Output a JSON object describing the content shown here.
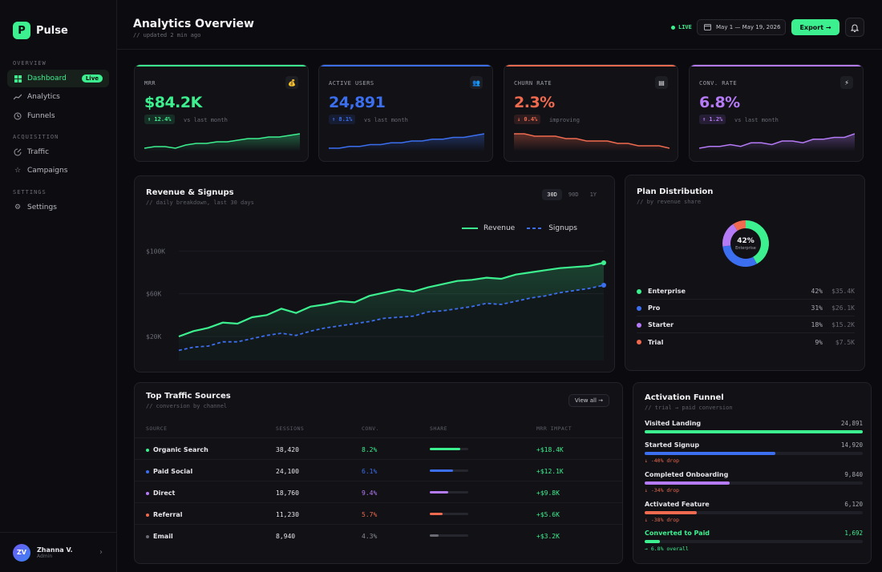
{
  "app": {
    "name": "Pulse",
    "logo_letter": "P"
  },
  "sidebar": {
    "sections": [
      {
        "label": "OVERVIEW"
      },
      {
        "label": "ACQUISITION"
      },
      {
        "label": "SETTINGS"
      }
    ],
    "items": [
      {
        "label": "Dashboard",
        "icon": "grid-icon",
        "badge": "Live",
        "active": true
      },
      {
        "label": "Analytics",
        "icon": "trend-icon"
      },
      {
        "label": "Funnels",
        "icon": "clock-icon"
      },
      {
        "label": "Traffic",
        "icon": "traffic-icon"
      },
      {
        "label": "Campaigns",
        "icon": "star-icon"
      },
      {
        "label": "Settings",
        "icon": "gear-icon"
      }
    ],
    "user": {
      "initials": "ZV",
      "name": "Zhanna V.",
      "role": "Admin"
    }
  },
  "header": {
    "title": "Analytics Overview",
    "subtitle": "// updated 2 min ago",
    "live_label": "LIVE",
    "date_range": "May 1 — May 19, 2026",
    "export_label": "Export →"
  },
  "kpis": [
    {
      "label": "MRR",
      "icon": "money-bag-icon",
      "glyph": "💰",
      "value": "$84.2K",
      "delta": "↑ 12.4%",
      "note": "vs last month",
      "color": "#3df08f",
      "spark": [
        3,
        4,
        4,
        3,
        5,
        6,
        6,
        7,
        7,
        8,
        9,
        9,
        10,
        10,
        11,
        12
      ]
    },
    {
      "label": "ACTIVE USERS",
      "icon": "users-icon",
      "glyph": "👥",
      "value": "24,891",
      "delta": "↑ 8.1%",
      "note": "vs last month",
      "color": "#3b6ff0",
      "spark": [
        3,
        3,
        4,
        4,
        5,
        5,
        6,
        6,
        7,
        7,
        8,
        8,
        9,
        9,
        10,
        11
      ]
    },
    {
      "label": "CHURN RATE",
      "icon": "document-icon",
      "glyph": "▤",
      "value": "2.3%",
      "delta": "↓ 0.4%",
      "note": "improving",
      "color": "#ef6a4f",
      "spark": [
        11,
        11,
        10,
        10,
        10,
        9,
        9,
        8,
        8,
        8,
        7,
        7,
        6,
        6,
        6,
        5
      ]
    },
    {
      "label": "CONV. RATE",
      "icon": "bolt-icon",
      "glyph": "⚡",
      "value": "6.8%",
      "delta": "↑ 1.2%",
      "note": "vs last month",
      "color": "#b57af5",
      "spark": [
        3,
        4,
        4,
        5,
        4,
        6,
        6,
        5,
        7,
        7,
        6,
        8,
        8,
        9,
        9,
        11
      ]
    }
  ],
  "revenue_chart": {
    "title": "Revenue & Signups",
    "subtitle": "// daily breakdown, last 30 days",
    "ranges": [
      "30D",
      "90D",
      "1Y"
    ],
    "active_range": "30D",
    "tick_labels": [
      "$100K",
      "$60K",
      "$20K"
    ],
    "legend": [
      {
        "name": "Revenue",
        "color": "#3df08f",
        "style": "solid"
      },
      {
        "name": "Signups",
        "color": "#3b6ff0",
        "style": "dashed"
      }
    ]
  },
  "chart_data": {
    "type": "line",
    "title": "Revenue & Signups",
    "y_ticks": [
      "$100K",
      "$60K",
      "$20K"
    ],
    "y_tick_values": [
      100,
      60,
      20
    ],
    "ylim": [
      5,
      125
    ],
    "x": [
      1,
      2,
      3,
      4,
      5,
      6,
      7,
      8,
      9,
      10,
      11,
      12,
      13,
      14,
      15,
      16,
      17,
      18,
      19,
      20,
      21,
      22,
      23,
      24,
      25,
      26,
      27,
      28,
      29,
      30
    ],
    "series": [
      {
        "name": "Revenue",
        "style": "solid",
        "color": "#3df08f",
        "values": [
          20,
          25,
          28,
          33,
          32,
          38,
          40,
          46,
          42,
          48,
          50,
          53,
          52,
          58,
          61,
          64,
          62,
          66,
          69,
          72,
          73,
          75,
          74,
          78,
          80,
          82,
          84,
          85,
          86,
          89
        ]
      },
      {
        "name": "Signups",
        "style": "dashed",
        "color": "#3b6ff0",
        "values": [
          7,
          10,
          11,
          15,
          15,
          18,
          21,
          23,
          21,
          25,
          28,
          30,
          32,
          34,
          37,
          38,
          39,
          43,
          44,
          46,
          48,
          51,
          50,
          53,
          56,
          58,
          61,
          63,
          65,
          68
        ]
      }
    ],
    "grid": true,
    "legend_position": "top-right"
  },
  "plan_distribution": {
    "title": "Plan Distribution",
    "subtitle": "// by revenue share",
    "center_value": "42%",
    "center_label": "Enterprise",
    "plans": [
      {
        "name": "Enterprise",
        "pct": "42%",
        "share": 42,
        "amount": "$35.4K",
        "color": "#3df08f"
      },
      {
        "name": "Pro",
        "pct": "31%",
        "share": 31,
        "amount": "$26.1K",
        "color": "#3b6ff0"
      },
      {
        "name": "Starter",
        "pct": "18%",
        "share": 18,
        "amount": "$15.2K",
        "color": "#b57af5"
      },
      {
        "name": "Trial",
        "pct": "9%",
        "share": 9,
        "amount": "$7.5K",
        "color": "#ef6a4f"
      }
    ]
  },
  "traffic": {
    "title": "Top Traffic Sources",
    "subtitle": "// conversion by channel",
    "view_all": "View all →",
    "columns": [
      "SOURCE",
      "SESSIONS",
      "CONV.",
      "SHARE",
      "MRR IMPACT"
    ],
    "rows": [
      {
        "source": "Organic Search",
        "sessions": "38,420",
        "conv": "8.2%",
        "share": 0.8,
        "impact": "+$18.4K",
        "color": "#3df08f"
      },
      {
        "source": "Paid Social",
        "sessions": "24,100",
        "conv": "6.1%",
        "share": 0.6,
        "impact": "+$12.1K",
        "color": "#3b6ff0"
      },
      {
        "source": "Direct",
        "sessions": "18,760",
        "conv": "9.4%",
        "share": 0.48,
        "impact": "+$9.8K",
        "color": "#b57af5"
      },
      {
        "source": "Referral",
        "sessions": "11,230",
        "conv": "5.7%",
        "share": 0.33,
        "impact": "+$5.6K",
        "color": "#ef6a4f"
      },
      {
        "source": "Email",
        "sessions": "8,940",
        "conv": "4.3%",
        "share": 0.23,
        "impact": "+$3.2K",
        "color": "#6b6b76"
      }
    ]
  },
  "funnel": {
    "title": "Activation Funnel",
    "subtitle": "// trial → paid conversion",
    "steps": [
      {
        "name": "Visited Landing",
        "value": "24,891",
        "fill": 1.0,
        "color": "#3df08f",
        "drop": ""
      },
      {
        "name": "Started Signup",
        "value": "14,920",
        "fill": 0.6,
        "color": "#3b6ff0",
        "drop": "↓ -40% drop"
      },
      {
        "name": "Completed Onboarding",
        "value": "9,840",
        "fill": 0.39,
        "color": "#b57af5",
        "drop": "↓ -34% drop"
      },
      {
        "name": "Activated Feature",
        "value": "6,120",
        "fill": 0.24,
        "color": "#ef6a4f",
        "drop": "↓ -38% drop"
      },
      {
        "name": "Converted to Paid",
        "value": "1,692",
        "fill": 0.07,
        "color": "#3df08f",
        "drop": "→ 6.8% overall",
        "highlight": true
      }
    ]
  }
}
